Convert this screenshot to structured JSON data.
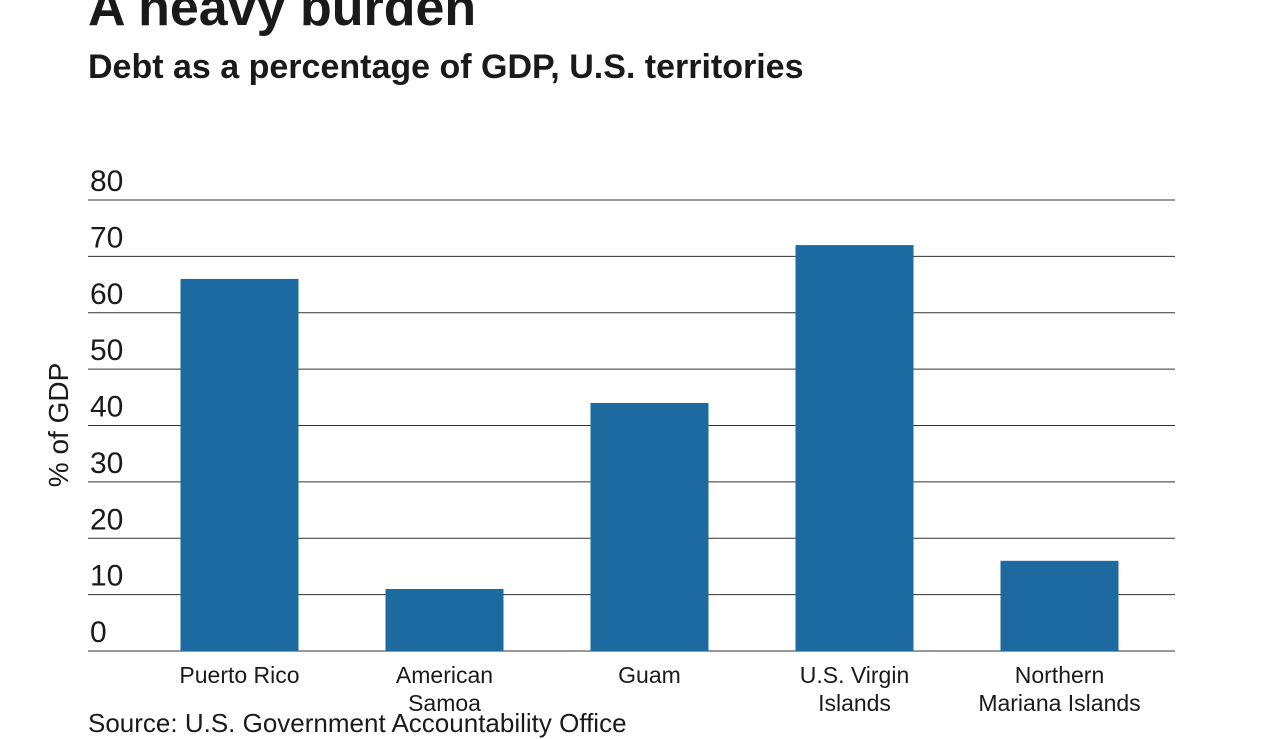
{
  "header": {
    "title": "A heavy burden",
    "subtitle": "Debt as a percentage of GDP, U.S. territories"
  },
  "footer": {
    "source": "Source: U.S. Government Accountability Office"
  },
  "colors": {
    "bar": "#1c6aa0",
    "grid": "#333333"
  },
  "chart_data": {
    "type": "bar",
    "categories": [
      [
        "Puerto Rico"
      ],
      [
        "American",
        "Samoa"
      ],
      [
        "Guam"
      ],
      [
        "U.S. Virgin",
        "Islands"
      ],
      [
        "Northern",
        "Mariana Islands"
      ]
    ],
    "values": [
      66,
      11,
      44,
      72,
      16
    ],
    "ylabel": "% of GDP",
    "ylim": [
      0,
      80
    ],
    "yticks": [
      0,
      10,
      20,
      30,
      40,
      50,
      60,
      70,
      80
    ],
    "grid": true
  }
}
